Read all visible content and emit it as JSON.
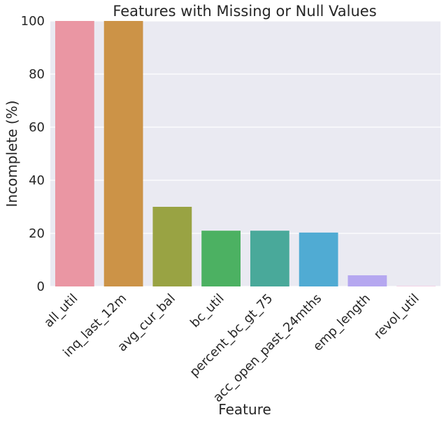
{
  "chart_data": {
    "type": "bar",
    "title": "Features with Missing or Null Values",
    "xlabel": "Feature",
    "ylabel": "Incomplete (%)",
    "ylim": [
      0,
      100
    ],
    "yticks": [
      0,
      20,
      40,
      60,
      80,
      100
    ],
    "grid": true,
    "categories": [
      "all_util",
      "inq_last_12m",
      "avg_cur_bal",
      "bc_util",
      "percent_bc_gt_75",
      "acc_open_past_24mths",
      "emp_length",
      "revol_util"
    ],
    "values": [
      100,
      100,
      30,
      21,
      21,
      20.3,
      4.2,
      0.1
    ],
    "colors": [
      "#ea96a3",
      "#cc9347",
      "#99a343",
      "#4cb162",
      "#49a99a",
      "#50abd3",
      "#b5a7f0",
      "#f49fc9"
    ],
    "background": "#eaeaf2",
    "gridline_color": "#ffffff"
  }
}
